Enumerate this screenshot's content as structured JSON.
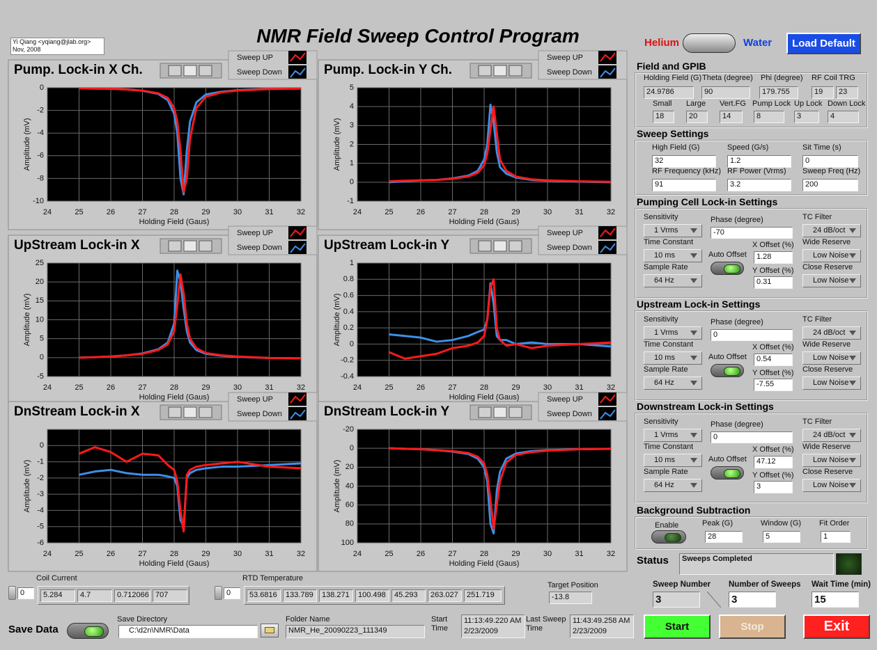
{
  "header": {
    "title": "NMR Field Sweep Control Program",
    "author": "Yi Qiang <yqiang@jlab.org>",
    "date": "Nov, 2008"
  },
  "mode": {
    "left": "Helium",
    "right": "Water",
    "button": "Load Default"
  },
  "plots": [
    {
      "type": "line",
      "title": "Pump. Lock-in X Ch.",
      "xlabel": "Holding Field (Gaus)",
      "ylabel": "Amplitude (mV)",
      "xlim": [
        24,
        32
      ],
      "ylim": [
        -10,
        0
      ],
      "xticks": [
        24,
        25,
        26,
        27,
        28,
        29,
        30,
        31,
        32
      ],
      "yticks": [
        0,
        -2,
        -4,
        -6,
        -8,
        -10
      ],
      "x": [
        25,
        25.5,
        26,
        26.5,
        27,
        27.5,
        27.8,
        28,
        28.1,
        28.2,
        28.3,
        28.4,
        28.5,
        28.7,
        29,
        29.5,
        30,
        31,
        32
      ],
      "series": [
        {
          "name": "Sweep UP",
          "color": "#ff1a1a",
          "values": [
            -0.05,
            -0.08,
            -0.1,
            -0.15,
            -0.25,
            -0.5,
            -0.9,
            -1.8,
            -3,
            -5.5,
            -9.2,
            -8,
            -4.5,
            -1.8,
            -0.8,
            -0.4,
            -0.25,
            -0.12,
            -0.08
          ]
        },
        {
          "name": "Sweep Down",
          "color": "#3d8fe8",
          "values": [
            -0.05,
            -0.08,
            -0.1,
            -0.15,
            -0.27,
            -0.55,
            -1.1,
            -2.3,
            -4,
            -8,
            -9.4,
            -5.5,
            -3,
            -1.3,
            -0.6,
            -0.35,
            -0.22,
            -0.1,
            -0.07
          ]
        }
      ]
    },
    {
      "type": "line",
      "title": "Pump. Lock-in Y Ch.",
      "xlabel": "Holding Field (Gaus)",
      "ylabel": "Amplitude (mV)",
      "xlim": [
        24,
        32
      ],
      "ylim": [
        -1,
        5
      ],
      "xticks": [
        24,
        25,
        26,
        27,
        28,
        29,
        30,
        31,
        32
      ],
      "yticks": [
        -1,
        0,
        1,
        2,
        3,
        4,
        5
      ],
      "x": [
        25,
        25.5,
        26,
        26.5,
        27,
        27.5,
        27.8,
        28,
        28.1,
        28.2,
        28.3,
        28.4,
        28.5,
        28.7,
        29,
        29.5,
        30,
        31,
        32
      ],
      "series": [
        {
          "name": "Sweep UP",
          "color": "#ff1a1a",
          "values": [
            0.05,
            0.08,
            0.1,
            0.12,
            0.18,
            0.3,
            0.5,
            0.9,
            1.5,
            2.8,
            4,
            2.6,
            1.2,
            0.6,
            0.3,
            0.15,
            0.1,
            0.05,
            0.02
          ]
        },
        {
          "name": "Sweep Down",
          "color": "#3d8fe8",
          "values": [
            0,
            0.05,
            0.1,
            0.12,
            0.2,
            0.35,
            0.6,
            1.2,
            2,
            4.1,
            3.2,
            1.6,
            0.8,
            0.45,
            0.25,
            0.12,
            0.08,
            0.03,
            0
          ]
        }
      ]
    },
    {
      "type": "line",
      "title": "UpStream Lock-in X",
      "xlabel": "Holding Field (Gaus)",
      "ylabel": "Amplitude (mV)",
      "xlim": [
        24,
        32
      ],
      "ylim": [
        -5,
        25
      ],
      "xticks": [
        24,
        25,
        26,
        27,
        28,
        29,
        30,
        31,
        32
      ],
      "yticks": [
        -5,
        0,
        5,
        10,
        15,
        20,
        25
      ],
      "x": [
        25,
        25.5,
        26,
        26.5,
        27,
        27.5,
        27.8,
        28,
        28.1,
        28.2,
        28.3,
        28.4,
        28.5,
        28.7,
        29,
        29.5,
        30,
        31,
        32
      ],
      "series": [
        {
          "name": "Sweep UP",
          "color": "#ff1a1a",
          "values": [
            0,
            0.1,
            0.3,
            0.6,
            1,
            2,
            3.5,
            7,
            14,
            22,
            17,
            9,
            5,
            2.5,
            1.2,
            0.6,
            0.3,
            -0.1,
            -0.2
          ]
        },
        {
          "name": "Sweep Down",
          "color": "#3d8fe8",
          "values": [
            0,
            0.1,
            0.3,
            0.6,
            1.1,
            2.2,
            4,
            9,
            23,
            20,
            13,
            7,
            4,
            2,
            1,
            0.5,
            0.2,
            -0.1,
            -0.2
          ]
        }
      ]
    },
    {
      "type": "line",
      "title": "UpStream Lock-in Y",
      "xlabel": "Holding Field (Gaus)",
      "ylabel": "Amplitude (mV)",
      "xlim": [
        24,
        32
      ],
      "ylim": [
        -0.4,
        1
      ],
      "xticks": [
        24,
        25,
        26,
        27,
        28,
        29,
        30,
        31,
        32
      ],
      "yticks": [
        -0.4,
        -0.2,
        0,
        0.2,
        0.4,
        0.6,
        0.8,
        1
      ],
      "x": [
        25,
        25.5,
        26,
        26.5,
        27,
        27.5,
        27.8,
        28,
        28.1,
        28.2,
        28.3,
        28.4,
        28.5,
        28.7,
        29,
        29.5,
        30,
        31,
        32
      ],
      "series": [
        {
          "name": "Sweep UP",
          "color": "#ff1a1a",
          "values": [
            -0.1,
            -0.18,
            -0.15,
            -0.12,
            -0.05,
            -0.02,
            0.02,
            0.1,
            0.3,
            0.7,
            0.8,
            0.2,
            0.05,
            -0.02,
            0,
            -0.05,
            -0.02,
            0,
            0.02
          ]
        },
        {
          "name": "Sweep Down",
          "color": "#3d8fe8",
          "values": [
            0.12,
            0.1,
            0.08,
            0.03,
            0.05,
            0.1,
            0.15,
            0.18,
            0.3,
            0.75,
            0.5,
            0.1,
            0.05,
            0.05,
            0,
            0.02,
            0,
            0,
            -0.03
          ]
        }
      ]
    },
    {
      "type": "line",
      "title": "DnStream Lock-in X",
      "xlabel": "Holding Field (Gaus)",
      "ylabel": "Amplitude (mV)",
      "xlim": [
        24,
        32
      ],
      "ylim": [
        -6,
        1
      ],
      "xticks": [
        24,
        25,
        26,
        27,
        28,
        29,
        30,
        31,
        32
      ],
      "yticks": [
        0,
        -1,
        -2,
        -3,
        -4,
        -5,
        -6
      ],
      "x": [
        25,
        25.5,
        26,
        26.5,
        27,
        27.5,
        27.8,
        28,
        28.1,
        28.2,
        28.3,
        28.4,
        28.5,
        28.7,
        29,
        29.5,
        30,
        31,
        32
      ],
      "series": [
        {
          "name": "Sweep UP",
          "color": "#ff1a1a",
          "values": [
            -0.5,
            -0.1,
            -0.4,
            -1,
            -0.5,
            -0.6,
            -1.2,
            -1.5,
            -2.2,
            -4,
            -5.3,
            -1.8,
            -1.5,
            -1.3,
            -1.2,
            -1.1,
            -1,
            -1.3,
            -1.4
          ]
        },
        {
          "name": "Sweep Down",
          "color": "#3d8fe8",
          "values": [
            -1.8,
            -1.6,
            -1.5,
            -1.7,
            -1.8,
            -1.8,
            -1.9,
            -2,
            -2.5,
            -4.6,
            -5,
            -2,
            -1.7,
            -1.5,
            -1.4,
            -1.3,
            -1.3,
            -1.2,
            -1.1
          ]
        }
      ]
    },
    {
      "type": "line",
      "title": "DnStream Lock-in Y",
      "xlabel": "Holding Field (Gaus)",
      "ylabel": "Amplitude (mV)",
      "xlim": [
        24,
        32
      ],
      "ylim": [
        100,
        -20
      ],
      "xticks": [
        24,
        25,
        26,
        27,
        28,
        29,
        30,
        31,
        32
      ],
      "yticks": [
        -20,
        0,
        20,
        40,
        60,
        80,
        100
      ],
      "x": [
        25,
        25.5,
        26,
        26.5,
        27,
        27.5,
        27.8,
        28,
        28.1,
        28.2,
        28.3,
        28.4,
        28.5,
        28.7,
        29,
        29.5,
        30,
        31,
        32
      ],
      "series": [
        {
          "name": "Sweep UP",
          "color": "#ff1a1a",
          "values": [
            0,
            0.5,
            1,
            2,
            3,
            5,
            9,
            16,
            28,
            55,
            85,
            60,
            35,
            15,
            7,
            4,
            2.5,
            1,
            0.5
          ]
        },
        {
          "name": "Sweep Down",
          "color": "#3d8fe8",
          "values": [
            0,
            0.5,
            1,
            2,
            3.5,
            6,
            11,
            20,
            35,
            80,
            90,
            45,
            25,
            11,
            5.5,
            3,
            2,
            1,
            0.5
          ]
        }
      ]
    }
  ],
  "field_gpib": {
    "title": "Field and GPIB",
    "fields": [
      {
        "label": "Holding Field (G)",
        "values": [
          "24.9786"
        ]
      },
      {
        "label": "Theta (degree)",
        "values": [
          "90"
        ]
      },
      {
        "label": "Phi (degree)",
        "values": [
          "179.755"
        ]
      },
      {
        "label": "RF Coil TRG",
        "values": [
          "19",
          "23"
        ]
      },
      {
        "label": "Small",
        "values": [
          "18"
        ]
      },
      {
        "label": "Large",
        "values": [
          "20"
        ]
      },
      {
        "label": "Vert.FG",
        "values": [
          "14"
        ]
      },
      {
        "label": "Pump Lock",
        "values": [
          "8"
        ]
      },
      {
        "label": "Up Lock",
        "values": [
          "3"
        ]
      },
      {
        "label": "Down Lock",
        "values": [
          "4"
        ]
      }
    ]
  },
  "sweep_settings": {
    "title": "Sweep Settings",
    "fields": [
      {
        "label": "High Field (G)",
        "value": "32"
      },
      {
        "label": "Speed (G/s)",
        "value": "1.2"
      },
      {
        "label": "Sit Time (s)",
        "value": "0"
      },
      {
        "label": "RF Frequency (kHz)",
        "value": "91"
      },
      {
        "label": "RF Power (Vrms)",
        "value": "3.2"
      },
      {
        "label": "Sweep Freq (Hz)",
        "value": "200"
      }
    ]
  },
  "lockins": [
    {
      "title": "Pumping Cell Lock-in Settings",
      "sensitivity": {
        "label": "Sensitivity",
        "value": "1 Vrms"
      },
      "phase": {
        "label": "Phase (degree)",
        "value": "-70"
      },
      "tc_filter": {
        "label": "TC Filter",
        "value": "24 dB/oct"
      },
      "time_constant": {
        "label": "Time Constant",
        "value": "10 ms"
      },
      "auto_offset": "Auto Offset",
      "x_offset": {
        "label": "X Offset (%)",
        "value": "1.28"
      },
      "wide_reserve": {
        "label": "Wide Reserve",
        "value": "Low Noise"
      },
      "sample_rate": {
        "label": "Sample Rate",
        "value": "64 Hz"
      },
      "y_offset": {
        "label": "Y Offset (%)",
        "value": "0.31"
      },
      "close_reserve": {
        "label": "Close Reserve",
        "value": "Low Noise"
      }
    },
    {
      "title": "Upstream Lock-in Settings",
      "sensitivity": {
        "label": "Sensitivity",
        "value": "1 Vrms"
      },
      "phase": {
        "label": "Phase (degree)",
        "value": "0"
      },
      "tc_filter": {
        "label": "TC Filter",
        "value": "24 dB/oct"
      },
      "time_constant": {
        "label": "Time Constant",
        "value": "10 ms"
      },
      "auto_offset": "Auto Offset",
      "x_offset": {
        "label": "X Offset (%)",
        "value": "0.54"
      },
      "wide_reserve": {
        "label": "Wide Reserve",
        "value": "Low Noise"
      },
      "sample_rate": {
        "label": "Sample Rate",
        "value": "64 Hz"
      },
      "y_offset": {
        "label": "Y Offset (%)",
        "value": "-7.55"
      },
      "close_reserve": {
        "label": "Close Reserve",
        "value": "Low Noise"
      }
    },
    {
      "title": "Downstream Lock-in Settings",
      "sensitivity": {
        "label": "Sensitivity",
        "value": "1 Vrms"
      },
      "phase": {
        "label": "Phase (degree)",
        "value": "0"
      },
      "tc_filter": {
        "label": "TC Filter",
        "value": "24 dB/oct"
      },
      "time_constant": {
        "label": "Time Constant",
        "value": "10 ms"
      },
      "auto_offset": "Auto Offset",
      "x_offset": {
        "label": "X Offset (%)",
        "value": "47.12"
      },
      "wide_reserve": {
        "label": "Wide Reserve",
        "value": "Low Noise"
      },
      "sample_rate": {
        "label": "Sample Rate",
        "value": "64 Hz"
      },
      "y_offset": {
        "label": "Y Offset (%)",
        "value": "3"
      },
      "close_reserve": {
        "label": "Close Reserve",
        "value": "Low Noise"
      }
    }
  ],
  "background": {
    "title": "Background Subtraction",
    "enable": "Enable",
    "fields": [
      {
        "label": "Peak (G)",
        "value": "28"
      },
      {
        "label": "Window (G)",
        "value": "5"
      },
      {
        "label": "Fit Order",
        "value": "1"
      }
    ]
  },
  "status": {
    "label": "Status",
    "text": "Sweeps Completed"
  },
  "counters": [
    {
      "label": "Sweep Number",
      "value": "3"
    },
    {
      "label": "Number of Sweeps",
      "value": "3"
    },
    {
      "label": "Wait Time (min)",
      "value": "15"
    }
  ],
  "buttons": {
    "start": "Start",
    "stop": "Stop",
    "exit": "Exit"
  },
  "coil_current": {
    "label": "Coil Current",
    "index": "0",
    "values": [
      "5.284",
      "4.7",
      "0.712066",
      "707"
    ]
  },
  "rtd": {
    "label": "RTD Temperature",
    "index": "0",
    "values": [
      "53.6816",
      "133.789",
      "138.271",
      "100.498",
      "45.293",
      "263.027",
      "251.719"
    ]
  },
  "target": {
    "label": "Target Position",
    "value": "-13.8"
  },
  "save": {
    "label": "Save Data",
    "dir_label": "Save Directory",
    "dir": "C:\\d2n\\NMR\\Data",
    "folder_label": "Folder Name",
    "folder": "NMR_He_20090223_111349",
    "start_label": "Start Time",
    "start_time": [
      "11:13:49.220 AM",
      "2/23/2009"
    ],
    "last_label": "Last Sweep Time",
    "last_time": [
      "11:43:49.258 AM",
      "2/23/2009"
    ]
  }
}
